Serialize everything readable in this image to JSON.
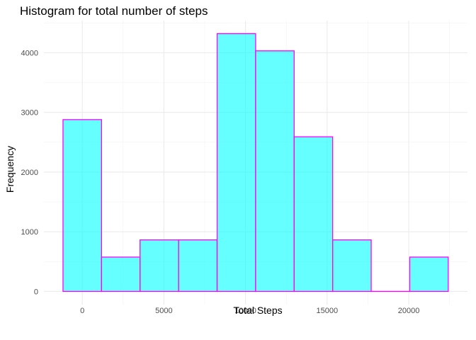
{
  "chart_data": {
    "type": "bar",
    "title": "Histogram for total number of steps",
    "xlabel": "Total Steps",
    "ylabel": "Frequency",
    "bin_edges": [
      -1180,
      1180,
      3540,
      5900,
      8260,
      10620,
      12980,
      15340,
      17700,
      20060,
      22420
    ],
    "values": [
      2880,
      576,
      864,
      864,
      4320,
      4032,
      2592,
      864,
      0,
      576
    ],
    "xlim": [
      -2350,
      23600
    ],
    "ylim": [
      -220,
      4540
    ],
    "x_ticks": [
      0,
      5000,
      10000,
      15000,
      20000
    ],
    "y_ticks": [
      0,
      1000,
      2000,
      3000,
      4000
    ],
    "grid": true,
    "bar_fill": "#00ffff",
    "bar_fill_opacity": 0.6,
    "bar_stroke": "#ff00ff"
  }
}
